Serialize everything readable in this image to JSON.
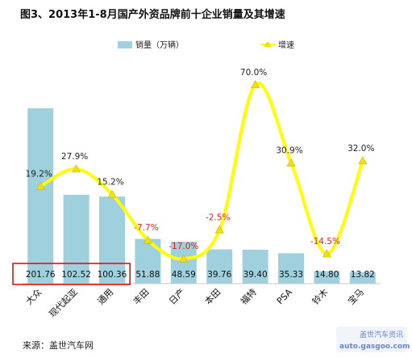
{
  "chart_data": {
    "type": "bar",
    "title": "图3、2013年1-8月国产外资品牌前十企业销量及其增速",
    "categories": [
      "大众",
      "现代起亚",
      "通用",
      "丰田",
      "日产",
      "本田",
      "福特",
      "PSA",
      "铃木",
      "宝马"
    ],
    "series": [
      {
        "name": "销量（万辆）",
        "kind": "bar",
        "values": [
          201.76,
          102.52,
          100.36,
          51.88,
          48.59,
          39.76,
          39.4,
          35.33,
          14.8,
          13.82
        ],
        "labels": [
          "201.76",
          "102.52",
          "100.36",
          "51.88",
          "48.59",
          "39.76",
          "39.40",
          "35.33",
          "14.80",
          "13.82"
        ]
      },
      {
        "name": "增速",
        "kind": "line",
        "values": [
          19.2,
          27.9,
          15.2,
          -7.7,
          -17.0,
          -2.5,
          70.0,
          30.9,
          -14.5,
          32.0
        ],
        "labels": [
          "19.2%",
          "27.9%",
          "15.2%",
          "-7.7%",
          "-17.0%",
          "-2.5%",
          "70.0%",
          "30.9%",
          "-14.5%",
          "32.0%"
        ]
      }
    ],
    "axes": {
      "bar_ylim": [
        0,
        230
      ],
      "line_ylim": [
        -25,
        80
      ],
      "axis_ticks_visible": false
    },
    "legend": "top",
    "highlight": "box around the first three bar value labels",
    "colors": {
      "bar": "#9fd0dd",
      "bar_edge": "#ffffff",
      "line": "#ffff00",
      "marker": "#f0e010",
      "negative_label": "#e02020",
      "positive_label": "#222222",
      "highlight_box": "#e01010"
    }
  },
  "footer": {
    "source": "来源：盖世汽车网",
    "watermark_top": "盖世汽车资讯",
    "watermark_url": "auto.gasgoo.com"
  }
}
